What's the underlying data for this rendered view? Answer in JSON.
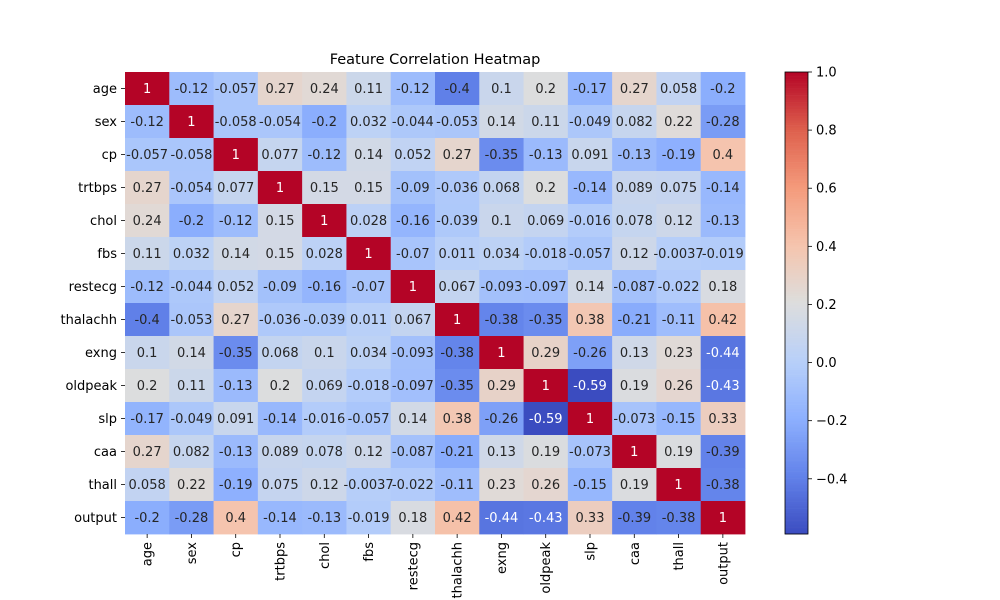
{
  "chart_data": {
    "type": "heatmap",
    "title": "Feature Correlation Heatmap",
    "xlabel": "",
    "ylabel": "",
    "labels": [
      "age",
      "sex",
      "cp",
      "trtbps",
      "chol",
      "fbs",
      "restecg",
      "thalachh",
      "exng",
      "oldpeak",
      "slp",
      "caa",
      "thall",
      "output"
    ],
    "cell_labels": [
      [
        "1",
        "-0.12",
        "-0.057",
        "0.27",
        "0.24",
        "0.11",
        "-0.12",
        "-0.4",
        "0.1",
        "0.2",
        "-0.17",
        "0.27",
        "0.058",
        "-0.2"
      ],
      [
        "-0.12",
        "1",
        "-0.058",
        "-0.054",
        "-0.2",
        "0.032",
        "-0.044",
        "-0.053",
        "0.14",
        "0.11",
        "-0.049",
        "0.082",
        "0.22",
        "-0.28"
      ],
      [
        "-0.057",
        "-0.058",
        "1",
        "0.077",
        "-0.12",
        "0.14",
        "0.052",
        "0.27",
        "-0.35",
        "-0.13",
        "0.091",
        "-0.13",
        "-0.19",
        "0.4"
      ],
      [
        "0.27",
        "-0.054",
        "0.077",
        "1",
        "0.15",
        "0.15",
        "-0.09",
        "-0.036",
        "0.068",
        "0.2",
        "-0.14",
        "0.089",
        "0.075",
        "-0.14"
      ],
      [
        "0.24",
        "-0.2",
        "-0.12",
        "0.15",
        "1",
        "0.028",
        "-0.16",
        "-0.039",
        "0.1",
        "0.069",
        "-0.016",
        "0.078",
        "0.12",
        "-0.13"
      ],
      [
        "0.11",
        "0.032",
        "0.14",
        "0.15",
        "0.028",
        "1",
        "-0.07",
        "0.011",
        "0.034",
        "-0.018",
        "-0.057",
        "0.12",
        "-0.0037",
        "-0.019"
      ],
      [
        "-0.12",
        "-0.044",
        "0.052",
        "-0.09",
        "-0.16",
        "-0.07",
        "1",
        "0.067",
        "-0.093",
        "-0.097",
        "0.14",
        "-0.087",
        "-0.022",
        "0.18"
      ],
      [
        "-0.4",
        "-0.053",
        "0.27",
        "-0.036",
        "-0.039",
        "0.011",
        "0.067",
        "1",
        "-0.38",
        "-0.35",
        "0.38",
        "-0.21",
        "-0.11",
        "0.42"
      ],
      [
        "0.1",
        "0.14",
        "-0.35",
        "0.068",
        "0.1",
        "0.034",
        "-0.093",
        "-0.38",
        "1",
        "0.29",
        "-0.26",
        "0.13",
        "0.23",
        "-0.44"
      ],
      [
        "0.2",
        "0.11",
        "-0.13",
        "0.2",
        "0.069",
        "-0.018",
        "-0.097",
        "-0.35",
        "0.29",
        "1",
        "-0.59",
        "0.19",
        "0.26",
        "-0.43"
      ],
      [
        "-0.17",
        "-0.049",
        "0.091",
        "-0.14",
        "-0.016",
        "-0.057",
        "0.14",
        "0.38",
        "-0.26",
        "-0.59",
        "1",
        "-0.073",
        "-0.15",
        "0.33"
      ],
      [
        "0.27",
        "0.082",
        "-0.13",
        "0.089",
        "0.078",
        "0.12",
        "-0.087",
        "-0.21",
        "0.13",
        "0.19",
        "-0.073",
        "1",
        "0.19",
        "-0.39"
      ],
      [
        "0.058",
        "0.22",
        "-0.19",
        "0.075",
        "0.12",
        "-0.0037",
        "-0.022",
        "-0.11",
        "0.23",
        "0.26",
        "-0.15",
        "0.19",
        "1",
        "-0.38"
      ],
      [
        "-0.2",
        "-0.28",
        "0.4",
        "-0.14",
        "-0.13",
        "-0.019",
        "0.18",
        "0.42",
        "-0.44",
        "-0.43",
        "0.33",
        "-0.39",
        "-0.38",
        "1"
      ]
    ],
    "colorbar": {
      "colormap": "coolwarm",
      "vmin": -0.59,
      "vmax": 1.0,
      "ticks": [
        1.0,
        0.8,
        0.6,
        0.4,
        0.2,
        0.0,
        -0.2,
        -0.4
      ],
      "tick_labels": [
        "1.0",
        "0.8",
        "0.6",
        "0.4",
        "0.2",
        "0.0",
        "−0.2",
        "−0.4"
      ]
    }
  }
}
